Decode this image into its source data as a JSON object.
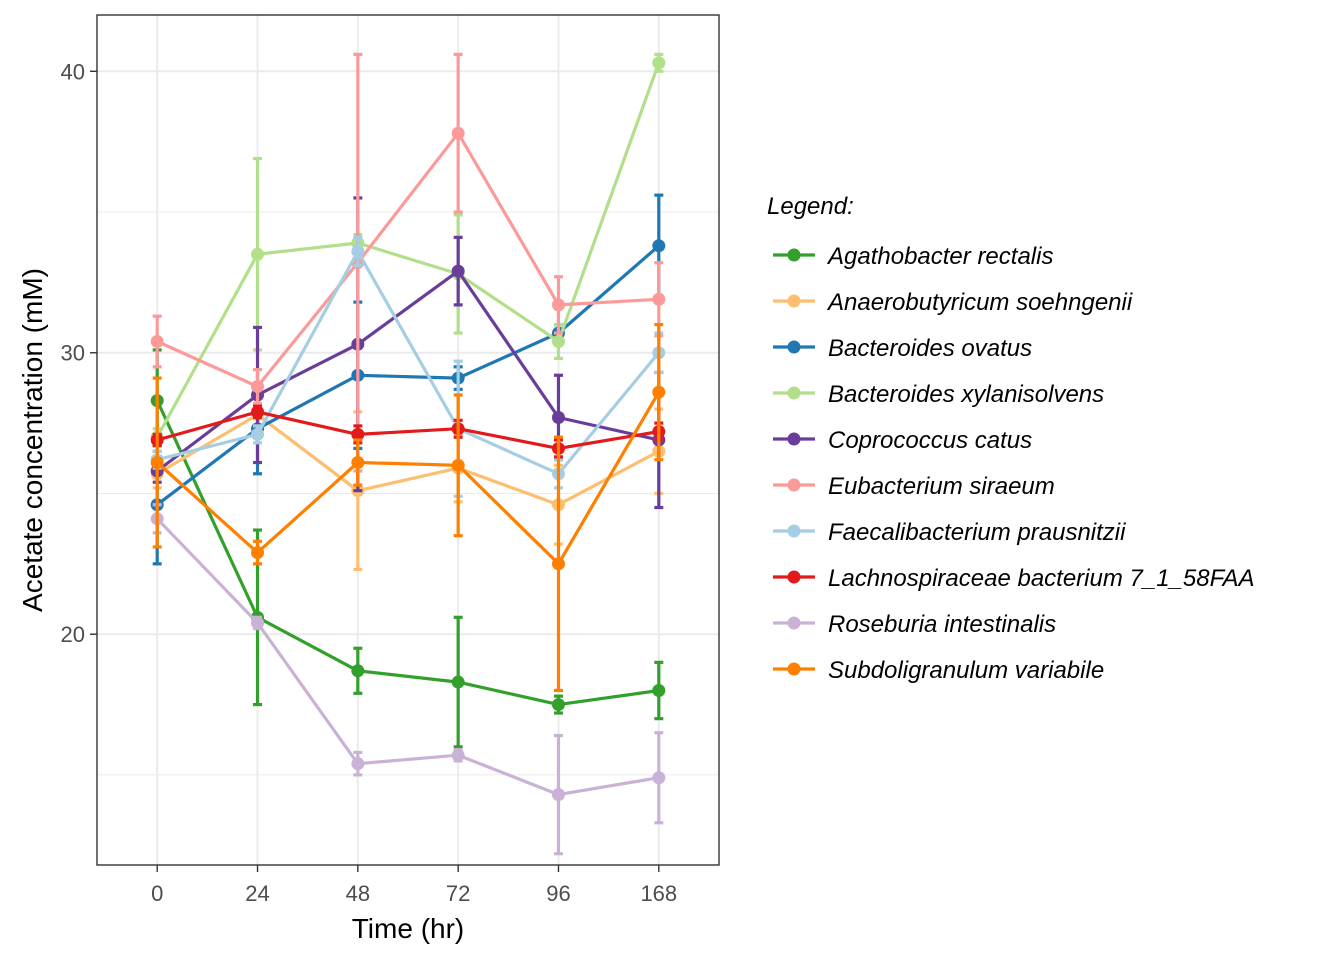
{
  "chart_data": {
    "type": "line",
    "title": "",
    "xlabel": "Time (hr)",
    "ylabel": "Acetate concentration (mM)",
    "categories": [
      "0",
      "24",
      "48",
      "72",
      "96",
      "168"
    ],
    "ylim": [
      11.8,
      42.0
    ],
    "yticks": [
      20,
      30,
      40
    ],
    "grid": true,
    "error_bars": true,
    "legend": {
      "title": "Legend:",
      "position": "right"
    },
    "series": [
      {
        "name": "Agathobacter rectalis",
        "color": "#33a02c",
        "values": [
          28.3,
          20.6,
          18.7,
          18.3,
          17.5,
          18.0
        ],
        "errors": [
          1.8,
          3.1,
          0.8,
          2.3,
          0.3,
          1.0
        ]
      },
      {
        "name": "Anaerobutyricum soehngenii",
        "color": "#fdbf6f",
        "values": [
          25.7,
          27.8,
          25.1,
          25.9,
          24.6,
          26.5
        ],
        "errors": [
          0.5,
          0.4,
          2.8,
          1.2,
          1.4,
          1.5
        ]
      },
      {
        "name": "Bacteroides ovatus",
        "color": "#1f78b4",
        "values": [
          24.6,
          27.3,
          29.2,
          29.1,
          30.7,
          33.8
        ],
        "errors": [
          2.1,
          1.6,
          2.6,
          0.4,
          0.3,
          1.8
        ]
      },
      {
        "name": "Bacteroides xylanisolvens",
        "color": "#b2df8a",
        "values": [
          27.0,
          33.5,
          33.9,
          32.8,
          30.4,
          40.3
        ],
        "errors": [
          0.3,
          3.4,
          0.3,
          2.1,
          0.6,
          0.3
        ]
      },
      {
        "name": "Coprococcus catus",
        "color": "#6a3d9a",
        "values": [
          25.8,
          28.5,
          30.3,
          32.9,
          27.7,
          26.9
        ],
        "errors": [
          0.4,
          2.4,
          5.2,
          1.2,
          1.5,
          2.4
        ]
      },
      {
        "name": "Eubacterium siraeum",
        "color": "#fb9a99",
        "values": [
          30.4,
          28.8,
          33.2,
          37.8,
          31.7,
          31.9
        ],
        "errors": [
          0.9,
          0.6,
          7.4,
          2.8,
          1.0,
          1.3
        ]
      },
      {
        "name": "Faecalibacterium prausnitzii",
        "color": "#a6cee3",
        "values": [
          26.2,
          27.1,
          33.6,
          27.3,
          25.7,
          30.0
        ],
        "errors": [
          0.3,
          0.3,
          0.5,
          2.4,
          0.5,
          0.7
        ]
      },
      {
        "name": "Lachnospiraceae bacterium 7_1_58FAA",
        "color": "#e31a1c",
        "values": [
          26.9,
          27.9,
          27.1,
          27.3,
          26.6,
          27.2
        ],
        "errors": [
          0.2,
          0.2,
          0.3,
          0.3,
          0.3,
          0.3
        ]
      },
      {
        "name": "Roseburia intestinalis",
        "color": "#cab2d6",
        "values": [
          24.1,
          20.4,
          15.4,
          15.7,
          14.3,
          14.9
        ],
        "errors": [
          0.5,
          0.2,
          0.4,
          0.2,
          2.1,
          1.6
        ]
      },
      {
        "name": "Subdoligranulum variabile",
        "color": "#ff7f00",
        "values": [
          26.1,
          22.9,
          26.1,
          26.0,
          22.5,
          28.6
        ],
        "errors": [
          3.0,
          0.4,
          0.8,
          2.5,
          4.5,
          2.4
        ]
      }
    ]
  }
}
